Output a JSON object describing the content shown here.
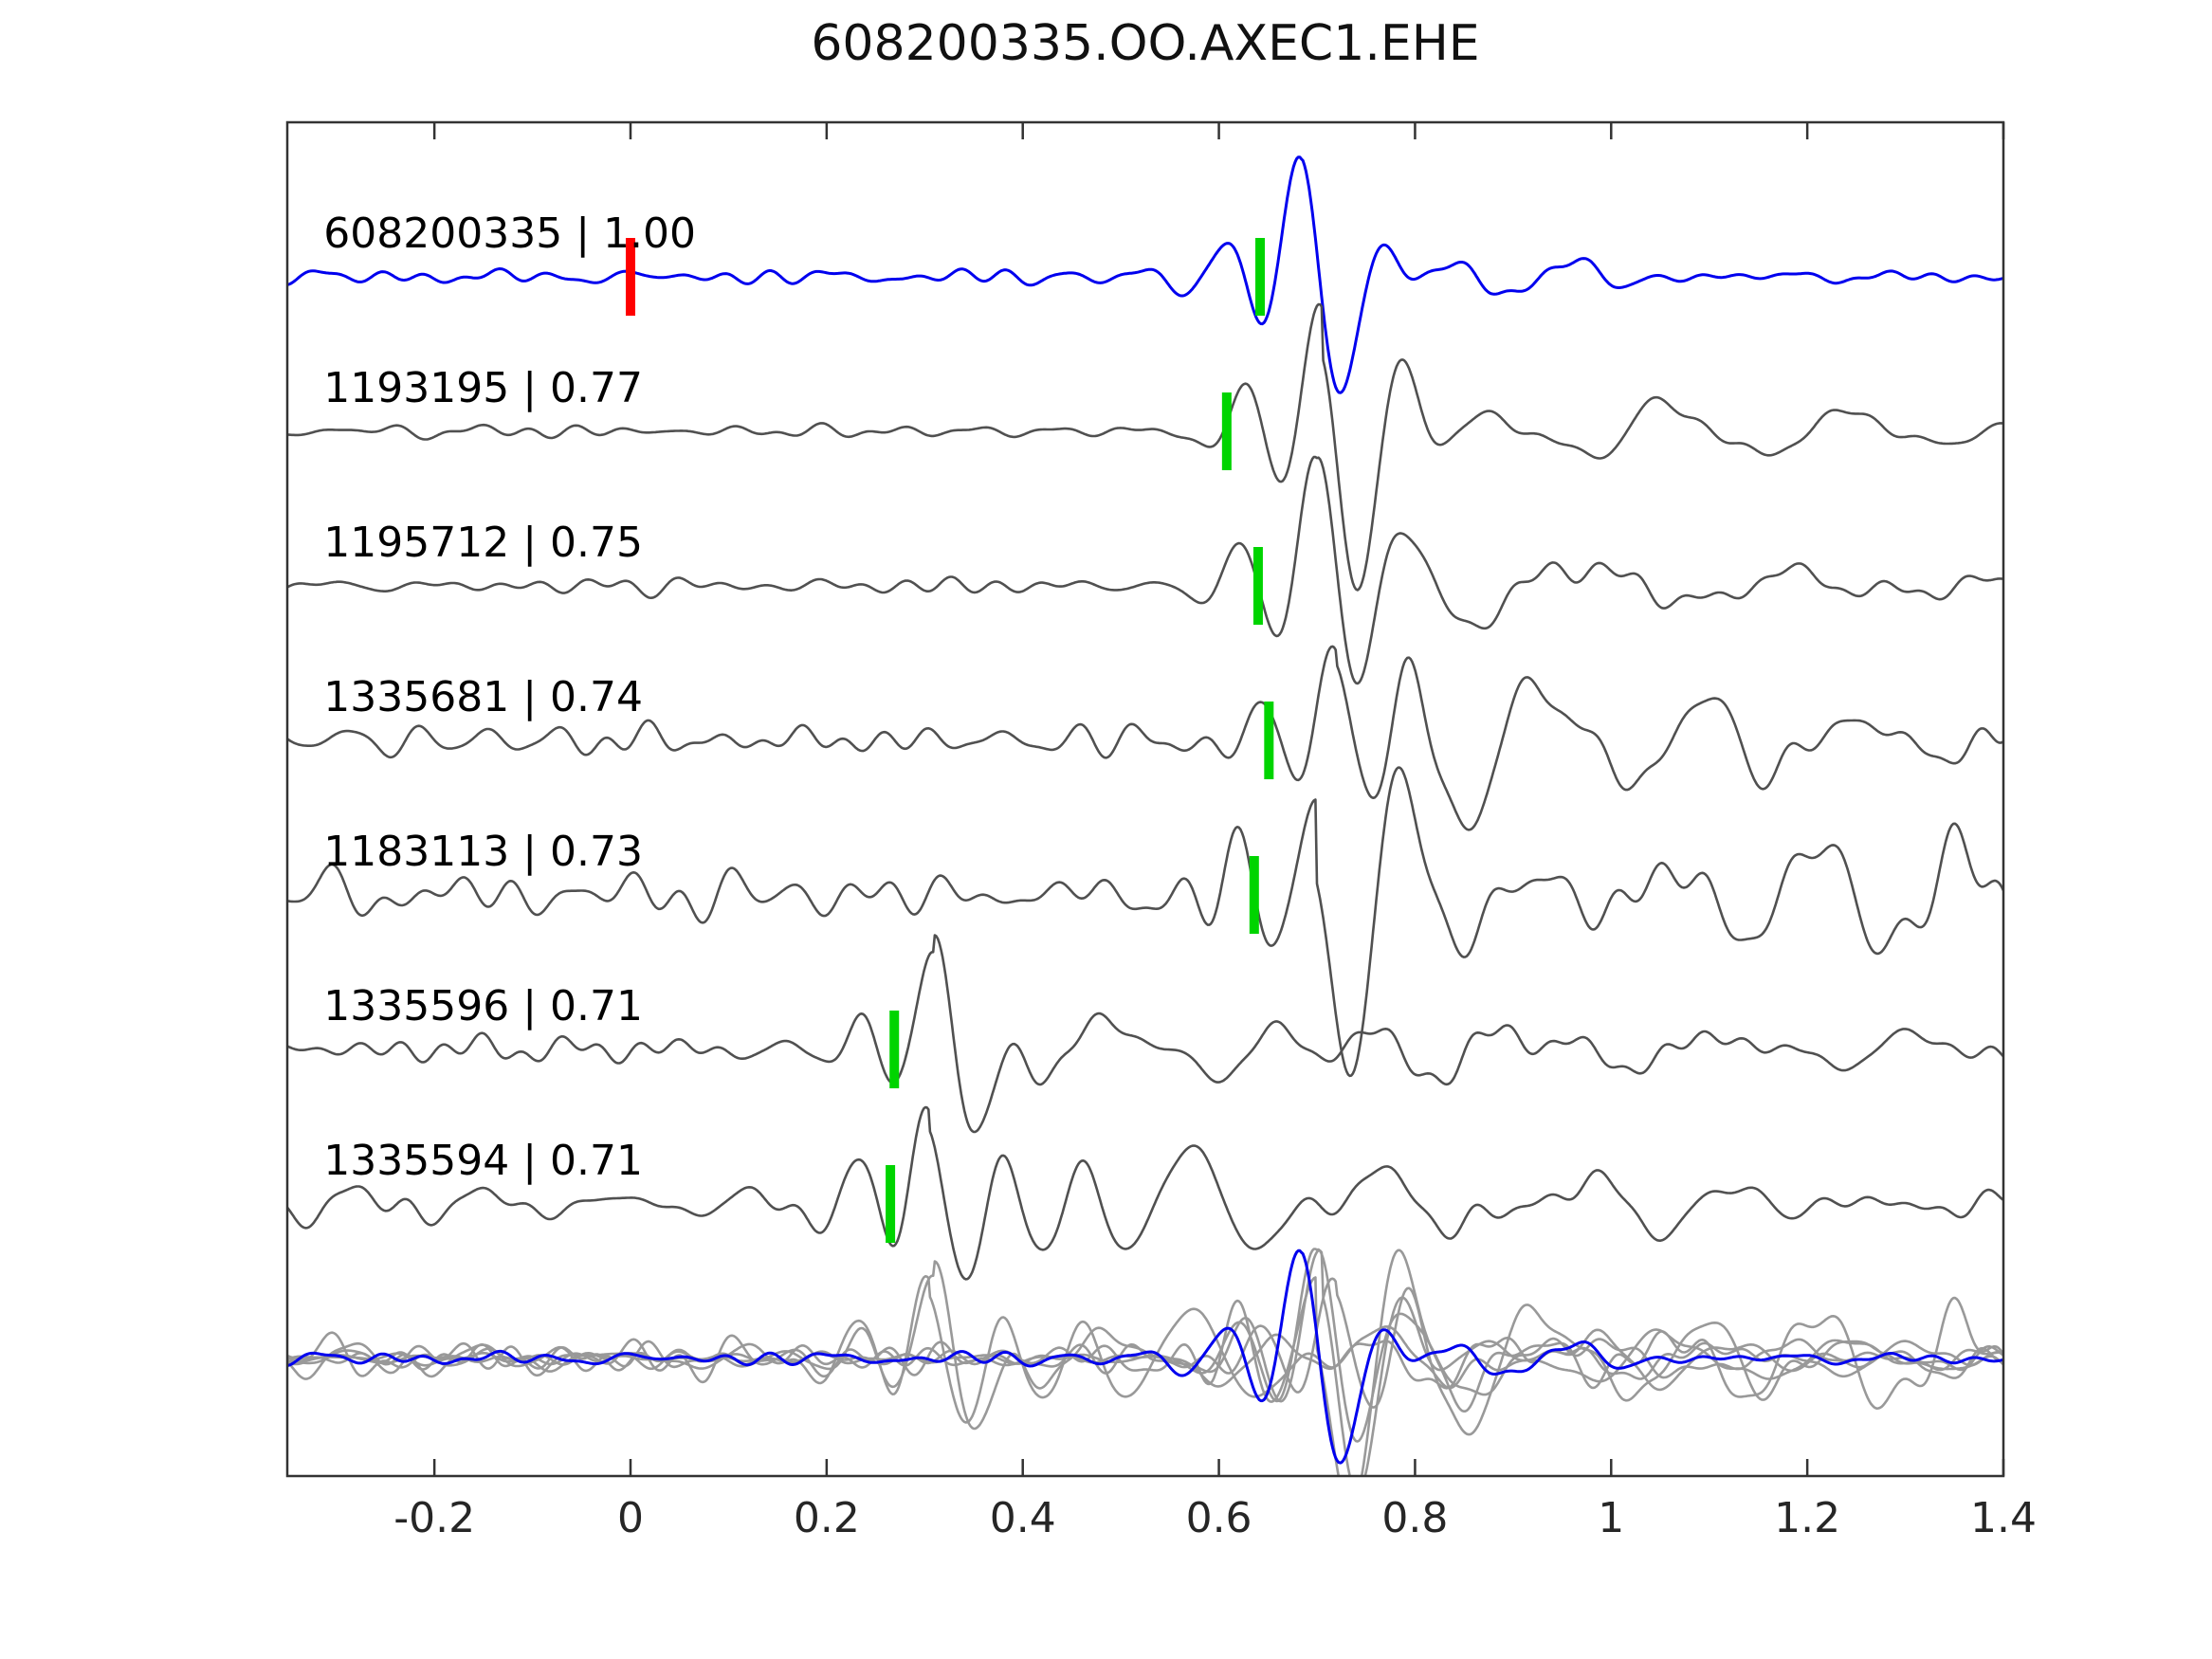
{
  "title": "608200335.OO.AXEC1.EHE",
  "colors": {
    "template": "#0000ee",
    "detection": "#505050",
    "overlay": "#999999",
    "pick": "#00d400",
    "zero_marker": "#ff0000",
    "axis": "#333333"
  },
  "chart_data": {
    "type": "line",
    "title": "608200335.OO.AXEC1.EHE",
    "xlabel": "",
    "ylabel": "",
    "xlim": [
      -0.35,
      1.4
    ],
    "grid": false,
    "legend": "none",
    "x_ticks": [
      -0.2,
      0,
      0.2,
      0.4,
      0.6,
      0.8,
      1,
      1.2,
      1.4
    ],
    "x_tick_labels": [
      "-0.2",
      "0",
      "0.2",
      "0.4",
      "0.6",
      "0.8",
      "1",
      "1.2",
      "1.4"
    ],
    "has_overlay_row": true,
    "traces": [
      {
        "id": "608200335",
        "label": "608200335 | 1.00",
        "cc": 1.0,
        "role": "template",
        "pick_x": 0.642,
        "zero_marker_x": 0.0,
        "waveform": {
          "seed": 7,
          "noise_amp": 0.07,
          "event_x": 0.685,
          "event_amp": 1.05,
          "coda": 0.22,
          "coda_len": 0.3
        }
      },
      {
        "id": "1193195",
        "label": "1193195 | 0.77",
        "cc": 0.77,
        "role": "detection",
        "pick_x": 0.608,
        "waveform": {
          "seed": 13,
          "noise_amp": 0.08,
          "event_x": 0.705,
          "event_amp": 1.2,
          "coda": 0.55,
          "coda_len": 0.45
        }
      },
      {
        "id": "1195712",
        "label": "1195712 | 0.75",
        "cc": 0.75,
        "role": "detection",
        "pick_x": 0.64,
        "waveform": {
          "seed": 21,
          "noise_amp": 0.08,
          "event_x": 0.7,
          "event_amp": 1.15,
          "coda": 0.55,
          "coda_len": 0.45
        }
      },
      {
        "id": "1335681",
        "label": "1335681 | 0.74",
        "cc": 0.74,
        "role": "detection",
        "pick_x": 0.651,
        "waveform": {
          "seed": 34,
          "noise_amp": 0.21,
          "event_x": 0.72,
          "event_amp": 0.95,
          "coda": 0.7,
          "coda_len": 0.5
        }
      },
      {
        "id": "1183113",
        "label": "1183113 | 0.73",
        "cc": 0.73,
        "role": "detection",
        "pick_x": 0.636,
        "waveform": {
          "seed": 55,
          "noise_amp": 0.24,
          "event_x": 0.7,
          "event_amp": 1.05,
          "coda": 0.75,
          "coda_len": 0.5
        }
      },
      {
        "id": "1335596",
        "label": "1335596 | 0.71",
        "cc": 0.71,
        "role": "detection",
        "pick_x": 0.269,
        "waveform": {
          "seed": 89,
          "noise_amp": 0.14,
          "event_x": 0.31,
          "event_amp": 0.95,
          "coda": 0.45,
          "coda_len": 0.9
        }
      },
      {
        "id": "1335594",
        "label": "1335594 | 0.71",
        "cc": 0.71,
        "role": "detection",
        "pick_x": 0.265,
        "waveform": {
          "seed": 144,
          "noise_amp": 0.15,
          "event_x": 0.305,
          "event_amp": 0.95,
          "coda": 0.45,
          "coda_len": 0.9
        }
      }
    ]
  }
}
